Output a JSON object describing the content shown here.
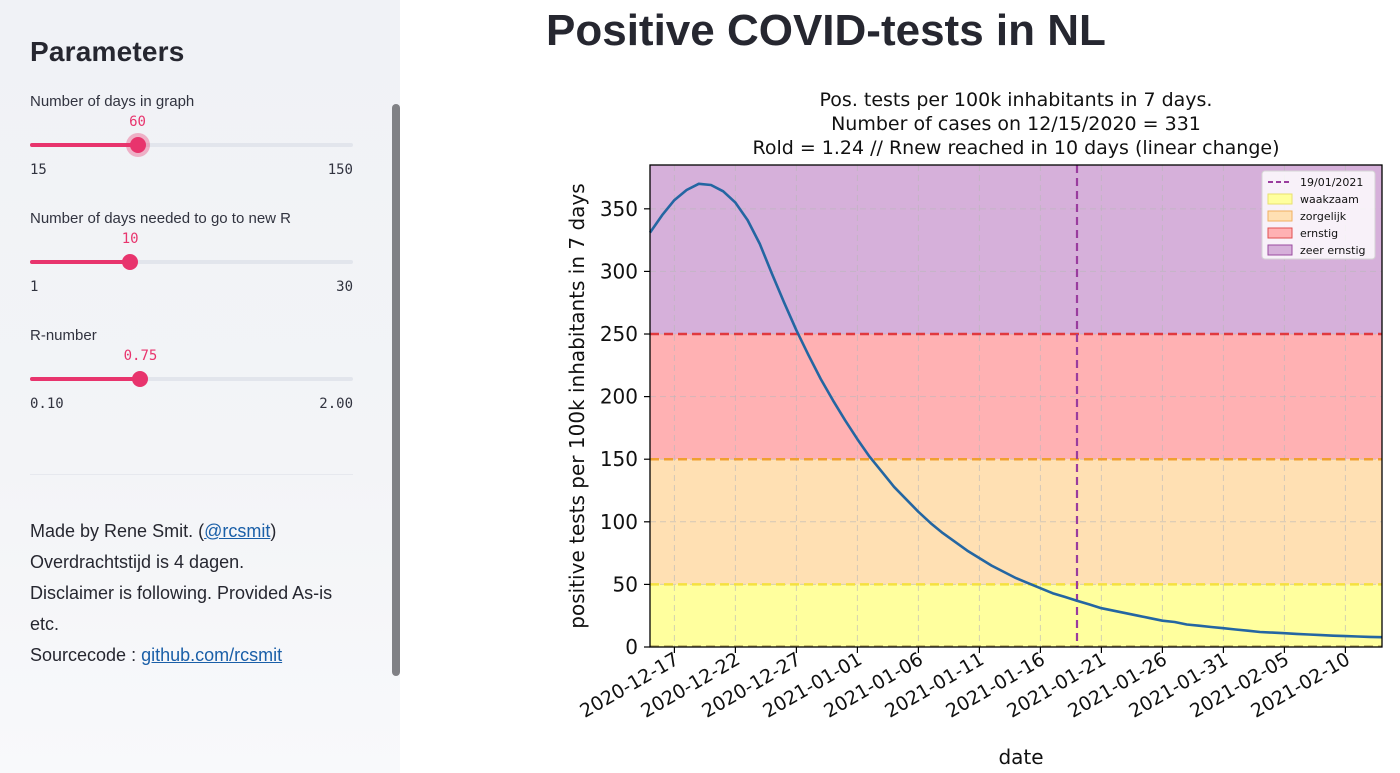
{
  "sidebar": {
    "title": "Parameters",
    "sliders": [
      {
        "label": "Number of days in graph",
        "value": "60",
        "min": "15",
        "max": "150",
        "fraction": 0.333
      },
      {
        "label": "Number of days needed to go to new R",
        "value": "10",
        "min": "1",
        "max": "30",
        "fraction": 0.31
      },
      {
        "label": "R-number",
        "value": "0.75",
        "min": "0.10",
        "max": "2.00",
        "fraction": 0.342
      }
    ],
    "about": {
      "made_by_prefix": "Made by Rene Smit. (",
      "made_by_link": "@rcsmit",
      "made_by_suffix": ")",
      "line2": "Overdrachtstijd is 4 dagen.",
      "line3": "Disclaimer is following. Provided As-is etc.",
      "source_prefix": "Sourcecode : ",
      "source_link": "github.com/rcsmit"
    }
  },
  "main": {
    "title": "Positive COVID-tests in NL"
  },
  "colors": {
    "accent": "#e8346d",
    "line": "#2466a2",
    "waakzaam": "#ffff9e",
    "zorgelijk": "#ffe0b3",
    "ernstig": "#ffb1b3",
    "zeer_ernstig": "#d6b0da"
  },
  "chart_data": {
    "type": "line",
    "title_lines": [
      "Pos. tests per 100k inhabitants in 7 days.",
      "Number of cases on 12/15/2020 = 331",
      "Rold = 1.24 // Rnew reached in 10 days (linear change)"
    ],
    "xlabel": "date",
    "ylabel": "positive tests per 100k inhabitants in 7 days",
    "xlim": [
      "2020-12-15",
      "2021-02-13"
    ],
    "ylim": [
      0,
      385
    ],
    "x_ticks": [
      "2020-12-17",
      "2020-12-22",
      "2020-12-27",
      "2021-01-01",
      "2021-01-06",
      "2021-01-11",
      "2021-01-16",
      "2021-01-21",
      "2021-01-26",
      "2021-01-31",
      "2021-02-05",
      "2021-02-10"
    ],
    "y_ticks": [
      0,
      50,
      100,
      150,
      200,
      250,
      300,
      350
    ],
    "grid": true,
    "legend_position": "top-right",
    "vline": {
      "date": "2021-01-19",
      "label": "19/01/2021"
    },
    "bands": [
      {
        "name": "waakzaam",
        "from": 0,
        "to": 50
      },
      {
        "name": "zorgelijk",
        "from": 50,
        "to": 150
      },
      {
        "name": "ernstig",
        "from": 150,
        "to": 250
      },
      {
        "name": "zeer ernstig",
        "from": 250,
        "to": 385
      }
    ],
    "series": [
      {
        "x": [
          "2020-12-15",
          "2020-12-16",
          "2020-12-17",
          "2020-12-18",
          "2020-12-19",
          "2020-12-20",
          "2020-12-21",
          "2020-12-22",
          "2020-12-23",
          "2020-12-24",
          "2020-12-25",
          "2020-12-26",
          "2020-12-27",
          "2020-12-28",
          "2020-12-29",
          "2020-12-30",
          "2020-12-31",
          "2021-01-01",
          "2021-01-02",
          "2021-01-03",
          "2021-01-04",
          "2021-01-05",
          "2021-01-06",
          "2021-01-07",
          "2021-01-08",
          "2021-01-09",
          "2021-01-10",
          "2021-01-11",
          "2021-01-12",
          "2021-01-13",
          "2021-01-14",
          "2021-01-15",
          "2021-01-16",
          "2021-01-17",
          "2021-01-18",
          "2021-01-19",
          "2021-01-20",
          "2021-01-21",
          "2021-01-22",
          "2021-01-23",
          "2021-01-24",
          "2021-01-25",
          "2021-01-26",
          "2021-01-27",
          "2021-01-28",
          "2021-01-29",
          "2021-01-30",
          "2021-01-31",
          "2021-02-01",
          "2021-02-02",
          "2021-02-03",
          "2021-02-04",
          "2021-02-05",
          "2021-02-06",
          "2021-02-07",
          "2021-02-08",
          "2021-02-09",
          "2021-02-10",
          "2021-02-11",
          "2021-02-12",
          "2021-02-13"
        ],
        "y": [
          331,
          345,
          357,
          365,
          370,
          369,
          364,
          355,
          341,
          322,
          298,
          275,
          253,
          233,
          214,
          197,
          181,
          166,
          152,
          140,
          128,
          118,
          108,
          99,
          91,
          84,
          77,
          71,
          65,
          60,
          55,
          51,
          47,
          43,
          40,
          37,
          34,
          31,
          29,
          27,
          25,
          23,
          21,
          20,
          18,
          17,
          16,
          15,
          14,
          13,
          12,
          11.5,
          11,
          10.5,
          10,
          9.5,
          9,
          8.7,
          8.4,
          8.1,
          7.8
        ]
      }
    ]
  }
}
